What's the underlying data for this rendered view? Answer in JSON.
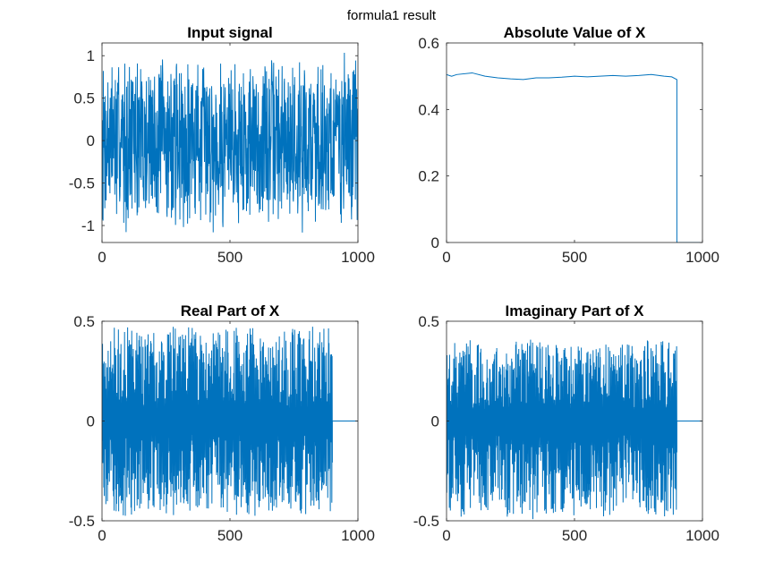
{
  "figure": {
    "title": "formula1 result"
  },
  "chart_data": [
    {
      "type": "line",
      "title": "Input signal",
      "xlabel": "",
      "ylabel": "",
      "xlim": [
        0,
        1000
      ],
      "ylim": [
        -1.2,
        1.15
      ],
      "xticks": [
        0,
        500,
        1000
      ],
      "yticks": [
        -1,
        -0.5,
        0,
        0.5,
        1
      ],
      "ytick_labels": [
        "-1",
        "-0.5",
        "0",
        "0.5",
        "1"
      ],
      "grid": false,
      "series": [
        {
          "values": {
            "kind": "noise",
            "n": 1000,
            "x_end": 1000,
            "amplitude": 1.1,
            "seed": 7
          }
        }
      ]
    },
    {
      "type": "line",
      "title": "Absolute Value of X",
      "xlabel": "",
      "ylabel": "",
      "xlim": [
        0,
        1000
      ],
      "ylim": [
        0,
        0.6
      ],
      "xticks": [
        0,
        500,
        1000
      ],
      "yticks": [
        0,
        0.2,
        0.4,
        0.6
      ],
      "ytick_labels": [
        "0",
        "0.2",
        "0.4",
        "0.6"
      ],
      "grid": false,
      "series": [
        {
          "x": [
            0,
            20,
            40,
            100,
            150,
            200,
            250,
            300,
            350,
            400,
            450,
            500,
            550,
            600,
            650,
            700,
            750,
            800,
            850,
            880,
            900,
            900,
            1000
          ],
          "y": [
            0.505,
            0.5,
            0.505,
            0.51,
            0.5,
            0.495,
            0.492,
            0.49,
            0.495,
            0.495,
            0.497,
            0.5,
            0.498,
            0.5,
            0.502,
            0.5,
            0.502,
            0.505,
            0.5,
            0.498,
            0.49,
            0.0,
            0.0
          ]
        }
      ]
    },
    {
      "type": "line",
      "title": "Real Part of X",
      "xlabel": "",
      "ylabel": "",
      "xlim": [
        0,
        1000
      ],
      "ylim": [
        -0.5,
        0.5
      ],
      "xticks": [
        0,
        500,
        1000
      ],
      "yticks": [
        -0.5,
        0,
        0.5
      ],
      "ytick_labels": [
        "-0.5",
        "0",
        "0.5"
      ],
      "grid": false,
      "series": [
        {
          "values": {
            "kind": "oscillation",
            "n": 900,
            "x_end": 900,
            "amplitude": 0.48,
            "tail_to": 1000,
            "tail_value": 0,
            "seed": 11
          }
        }
      ]
    },
    {
      "type": "line",
      "title": "Imaginary Part of X",
      "xlabel": "",
      "ylabel": "",
      "xlim": [
        0,
        1000
      ],
      "ylim": [
        -0.5,
        0.5
      ],
      "xticks": [
        0,
        500,
        1000
      ],
      "yticks": [
        -0.5,
        0,
        0.5
      ],
      "ytick_labels": [
        "-0.5",
        "0",
        "0.5"
      ],
      "grid": false,
      "series": [
        {
          "values": {
            "kind": "oscillation",
            "n": 900,
            "x_end": 900,
            "amplitude": 0.41,
            "low_amplitude": 0.5,
            "tail_to": 1000,
            "tail_value": 0,
            "seed": 23
          }
        }
      ]
    }
  ],
  "style": {
    "line_color": "#0072BD",
    "axis_color": "#262626",
    "text_color": "#262626"
  }
}
